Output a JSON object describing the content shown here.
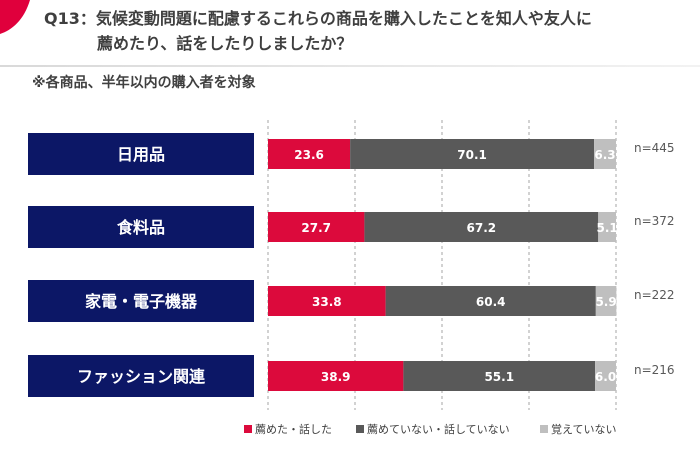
{
  "header": {
    "title_line1": "Q13：気候変動問題に配慮するこれらの商品を購入したことを知人や友人に",
    "title_line2": "薦めたり、話をしたりしましたか？",
    "subtitle": "※各商品、半年以内の購入者を対象"
  },
  "colors": {
    "accent": "#e0003c",
    "row_label_bg": "#0c1766",
    "recommended": "#dc0a3c",
    "not_recommended": "#595959",
    "dont_remember": "#bfbfbf",
    "grid": "#a6a6a6"
  },
  "chart_data": {
    "type": "bar",
    "orientation": "horizontal",
    "stacked": true,
    "percent_stacked": true,
    "categories": [
      "日用品",
      "食料品",
      "家電・電子機器",
      "ファッション関連"
    ],
    "series": [
      {
        "name": "薦めた・話した",
        "values": [
          23.6,
          27.7,
          33.8,
          38.9
        ]
      },
      {
        "name": "薦めていない・話していない",
        "values": [
          70.1,
          67.2,
          60.4,
          55.1
        ]
      },
      {
        "name": "覚えていない",
        "values": [
          6.3,
          5.1,
          5.9,
          6.0
        ]
      }
    ],
    "n_labels": [
      "n=445",
      "n=372",
      "n=222",
      "n=216"
    ],
    "xlim": [
      0,
      100
    ],
    "grid": true,
    "legend_position": "bottom-right"
  }
}
